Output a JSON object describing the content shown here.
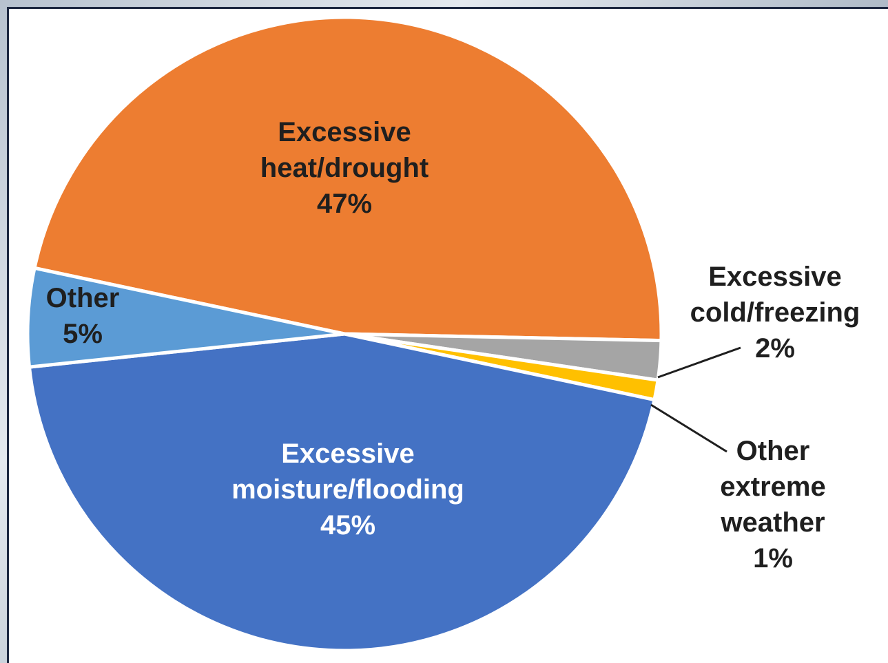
{
  "chart_data": {
    "type": "pie",
    "title": "",
    "slices": [
      {
        "id": "heat",
        "label": [
          "Excessive",
          "heat/drought"
        ],
        "value_label": "47%",
        "value": 47,
        "color": "#ed7d31",
        "text_color": "#1f1f1f"
      },
      {
        "id": "cold",
        "label": [
          "Excessive",
          "cold/freezing"
        ],
        "value_label": "2%",
        "value": 2,
        "color": "#a5a5a5",
        "text_color": "#1f1f1f"
      },
      {
        "id": "extreme",
        "label": [
          "Other",
          "extreme",
          "weather"
        ],
        "value_label": "1%",
        "value": 1,
        "color": "#ffc000",
        "text_color": "#1f1f1f"
      },
      {
        "id": "moisture",
        "label": [
          "Excessive",
          "moisture/flooding"
        ],
        "value_label": "45%",
        "value": 45,
        "color": "#4472c4",
        "text_color": "#ffffff"
      },
      {
        "id": "other",
        "label": [
          "Other"
        ],
        "value_label": "5%",
        "value": 5,
        "color": "#5b9bd5",
        "text_color": "#1f1f1f"
      }
    ],
    "legend": "none",
    "label_placement": "on-slice with leader lines for small slices"
  }
}
